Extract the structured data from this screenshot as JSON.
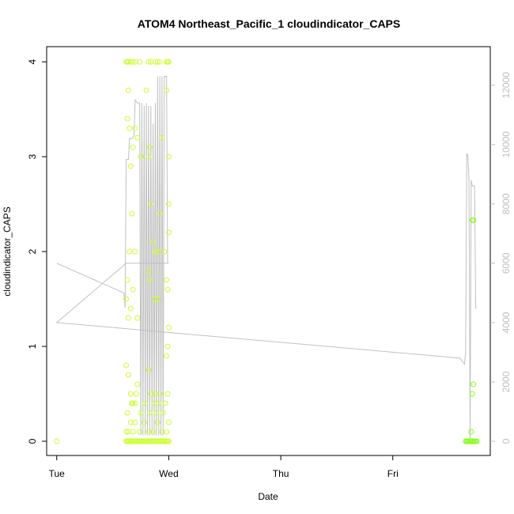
{
  "chart_data": {
    "type": "scatter",
    "title": "ATOM4 Northeast_Pacific_1 cloudindicator_CAPS",
    "xlabel": "Date",
    "ylabel": "cloudindicator_CAPS",
    "x_unit": "days",
    "xlim": [
      -0.09,
      3.87
    ],
    "ylim": [
      -0.15,
      4.16
    ],
    "x_ticks": [
      {
        "value": 0,
        "label": "Tue"
      },
      {
        "value": 1,
        "label": "Wed"
      },
      {
        "value": 2,
        "label": "Thu"
      },
      {
        "value": 3,
        "label": "Fri"
      }
    ],
    "y_ticks": [
      0,
      1,
      2,
      3,
      4
    ],
    "y2_ticks": [
      0,
      2000,
      4000,
      6000,
      8000,
      10000,
      12000
    ],
    "y2_lim": [
      -480,
      13300
    ],
    "colors": {
      "points_early": "#ccff33",
      "points_late": "#88ff22",
      "line": "#c0c0c0",
      "axis": "#000000",
      "right_axis": "#bdbdbd"
    },
    "series": [
      {
        "kind": "points",
        "color": "#ccff33",
        "x": [
          0.0,
          0.62,
          0.63,
          0.64,
          0.66,
          0.68,
          0.7,
          0.74,
          0.82,
          0.84,
          0.88,
          0.9,
          0.92,
          0.98,
          0.99,
          1.0,
          0.63,
          0.64,
          0.65,
          0.66,
          0.67,
          0.68,
          0.7,
          0.72,
          0.75,
          0.8,
          0.82,
          0.83,
          0.84,
          0.86,
          0.88,
          0.9,
          0.92,
          0.94,
          0.96,
          0.98,
          1.0,
          0.62,
          0.63,
          0.64,
          0.65,
          0.66,
          0.68,
          0.7,
          0.72,
          0.82,
          0.83,
          0.88,
          0.9,
          0.98,
          0.99,
          1.0,
          1.0,
          0.62,
          0.64,
          0.66,
          0.68,
          0.7,
          0.72,
          0.82,
          0.84,
          0.87,
          0.89,
          0.9,
          0.92,
          0.97,
          0.98,
          0.99,
          1.0
        ],
        "y": [
          0,
          4,
          4,
          4,
          4,
          4,
          4,
          4,
          4,
          4,
          4,
          4,
          4,
          4,
          4,
          4,
          3.4,
          3.7,
          3.3,
          2.9,
          2.4,
          3.1,
          3.3,
          3.2,
          3.0,
          3.7,
          3.0,
          3.1,
          2.5,
          2.1,
          2.0,
          2.0,
          2.4,
          3.2,
          2.0,
          3.7,
          3.0,
          1.5,
          1.7,
          1.3,
          2.0,
          1.4,
          1.6,
          2.0,
          1.3,
          1.8,
          1.7,
          1.5,
          1.5,
          1.7,
          1.6,
          2.2,
          2.5,
          0.8,
          0.7,
          0.5,
          0.4,
          0.4,
          0.6,
          0.75,
          0.5,
          0.4,
          0.3,
          0.2,
          0.5,
          0.4,
          0.9,
          1.0,
          1.2
        ]
      },
      {
        "kind": "points",
        "color": "#ccff33",
        "x": [
          0.62,
          0.63,
          0.64,
          0.65,
          0.66,
          0.67,
          0.68,
          0.69,
          0.7,
          0.71,
          0.72,
          0.73,
          0.74,
          0.75,
          0.76,
          0.77,
          0.78,
          0.79,
          0.8,
          0.81,
          0.82,
          0.83,
          0.84,
          0.85,
          0.86,
          0.87,
          0.88,
          0.89,
          0.9,
          0.91,
          0.92,
          0.93,
          0.94,
          0.95,
          0.96,
          0.97,
          0.98,
          0.99,
          1.0,
          0.62,
          0.64,
          0.66,
          0.68,
          0.7,
          0.74,
          0.78,
          0.82,
          0.86,
          0.9,
          0.94,
          0.98,
          1.0,
          0.63,
          0.67,
          0.71,
          0.75,
          0.79,
          0.83,
          0.87,
          0.91,
          0.95,
          0.99
        ],
        "y": [
          0,
          0,
          0,
          0,
          0,
          0,
          0,
          0,
          0,
          0,
          0,
          0,
          0,
          0,
          0,
          0,
          0,
          0,
          0,
          0,
          0,
          0,
          0,
          0,
          0,
          0,
          0,
          0,
          0,
          0,
          0,
          0,
          0,
          0,
          0,
          0,
          0,
          0,
          0,
          0.1,
          0.1,
          0.2,
          0.1,
          0.2,
          0.1,
          0.2,
          0.1,
          0.1,
          0.2,
          0.1,
          0.1,
          0.2,
          0.3,
          0.4,
          0.5,
          0.3,
          0.4,
          0.3,
          0.5,
          0.4,
          0.3,
          0.5
        ]
      },
      {
        "kind": "points",
        "color": "#88ff22",
        "x": [
          3.65,
          3.66,
          3.67,
          3.68,
          3.69,
          3.7,
          3.71,
          3.72,
          3.73,
          3.74,
          3.75,
          3.66,
          3.68,
          3.7,
          3.72,
          3.7,
          3.71,
          3.72,
          3.71,
          3.72
        ],
        "y": [
          0,
          0,
          0,
          0,
          0,
          0,
          0,
          0,
          0,
          0,
          0,
          0,
          0,
          0,
          0,
          0.1,
          0.5,
          0.6,
          2.33,
          2.33
        ]
      },
      {
        "kind": "line",
        "color": "#c0c0c0",
        "axis": "right",
        "x": [
          0.0,
          0.0,
          0.0,
          0.6,
          0.61,
          0.62,
          0.63,
          0.64,
          0.65,
          0.67,
          0.69,
          0.7,
          0.72,
          0.74,
          0.75,
          0.76,
          0.77,
          0.78,
          0.79,
          0.8,
          0.81,
          0.82,
          0.83,
          0.84,
          0.85,
          0.86,
          0.87,
          0.88,
          0.89,
          0.9,
          0.91,
          0.92,
          0.93,
          0.94,
          0.95,
          0.96,
          0.98,
          0.99,
          0.995,
          1.0,
          1.0,
          0.62,
          0.0,
          3.6,
          3.64,
          3.65,
          3.66,
          3.67,
          3.68,
          3.69,
          3.7,
          3.71,
          3.72,
          3.73,
          3.74,
          3.75
        ],
        "y": [
          6000,
          6000,
          6000,
          5000,
          4500,
          9500,
          9500,
          9500,
          10200,
          10200,
          10300,
          11500,
          11400,
          11400,
          200,
          11400,
          200,
          11300,
          200,
          11400,
          200,
          11300,
          200,
          11300,
          200,
          10700,
          200,
          11400,
          200,
          12300,
          200,
          12300,
          200,
          12300,
          200,
          12300,
          12300,
          6000,
          6000,
          6000,
          6000,
          6000,
          4000,
          2800,
          2600,
          3000,
          9700,
          9600,
          8800,
          100,
          8800,
          8600,
          8600,
          8600,
          4500,
          4500
        ]
      }
    ]
  }
}
